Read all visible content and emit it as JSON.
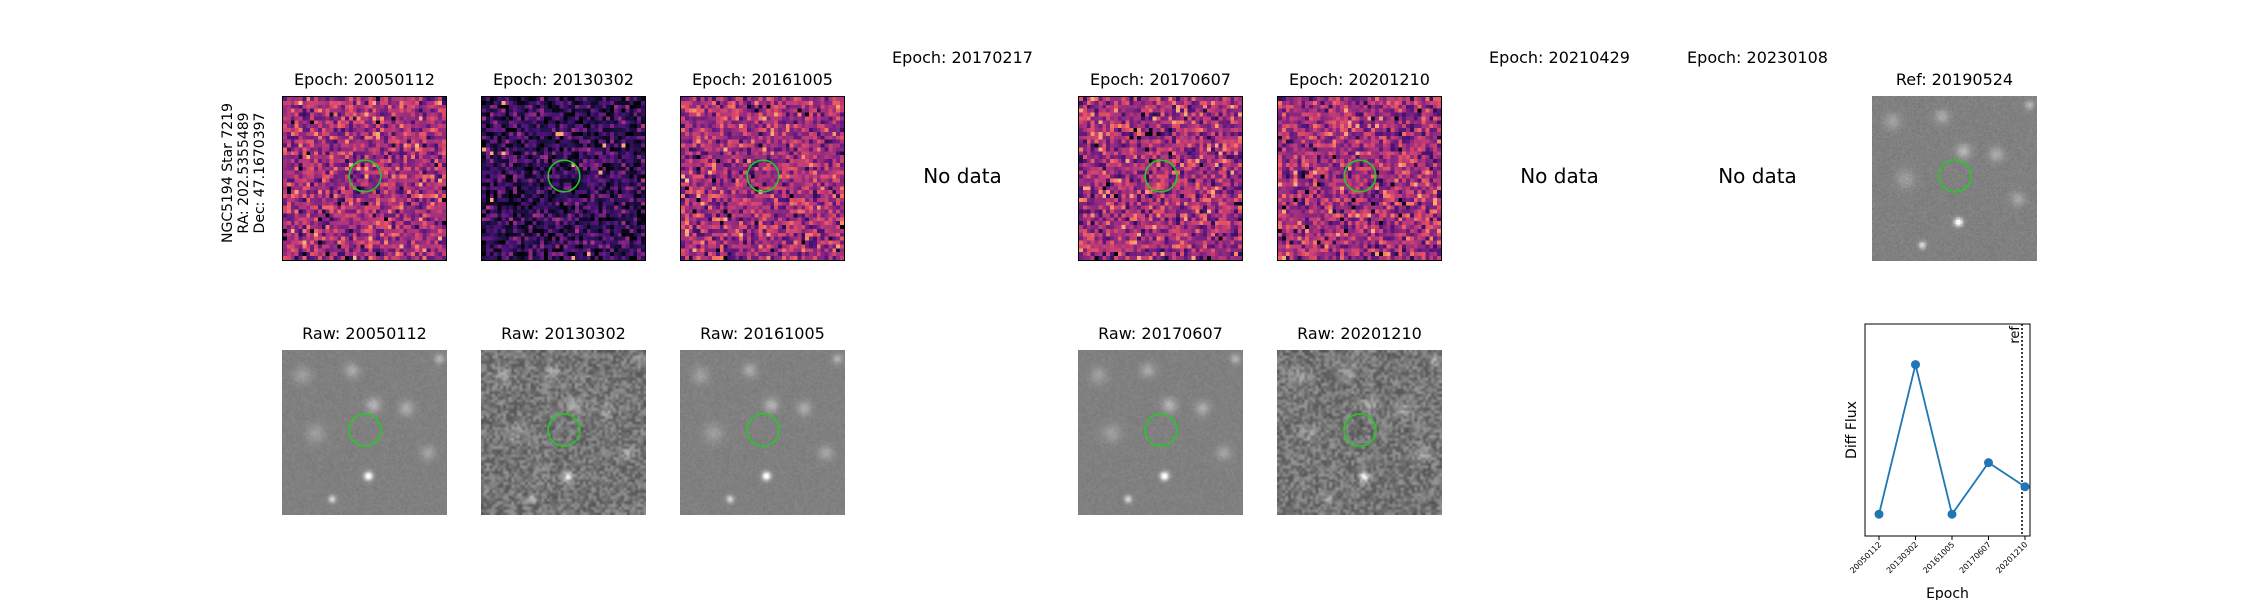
{
  "side_label": [
    "NGC5194 Star 7219",
    "RA: 202.5355489",
    "Dec: 47.1670397"
  ],
  "diff_row": [
    {
      "title": "Epoch: 20050112",
      "has_data": true,
      "seed": 11,
      "cmap": "magma"
    },
    {
      "title": "Epoch: 20130302",
      "has_data": true,
      "seed": 23,
      "cmap": "magma-dark"
    },
    {
      "title": "Epoch: 20161005",
      "has_data": true,
      "seed": 37,
      "cmap": "magma"
    },
    {
      "title": "Epoch: 20170217",
      "has_data": false,
      "nodata_text": "No data"
    },
    {
      "title": "Epoch: 20170607",
      "has_data": true,
      "seed": 41,
      "cmap": "magma"
    },
    {
      "title": "Epoch: 20201210",
      "has_data": true,
      "seed": 53,
      "cmap": "magma"
    },
    {
      "title": "Epoch: 20210429",
      "has_data": false,
      "nodata_text": "No data"
    },
    {
      "title": "Epoch: 20230108",
      "has_data": false,
      "nodata_text": "No data"
    },
    {
      "title": "Ref: 20190524",
      "has_data": true,
      "seed": 67,
      "cmap": "gray"
    }
  ],
  "raw_row": [
    {
      "title": "Raw: 20050112",
      "seed": 71,
      "noise": "smooth"
    },
    {
      "title": "Raw: 20130302",
      "seed": 83,
      "noise": "grainy"
    },
    {
      "title": "Raw: 20161005",
      "seed": 97,
      "noise": "smooth"
    },
    {
      "title": "",
      "empty": true
    },
    {
      "title": "Raw: 20170607",
      "seed": 101,
      "noise": "smooth"
    },
    {
      "title": "Raw: 20201210",
      "seed": 113,
      "noise": "grainy"
    }
  ],
  "aperture_color": "#22cc22",
  "chart_data": {
    "type": "line",
    "xlabel": "Epoch",
    "ylabel": "Diff Flux",
    "x": [
      "20050112",
      "20130302",
      "20161005",
      "20170607",
      "20201210"
    ],
    "values": [
      0.08,
      0.95,
      0.08,
      0.38,
      0.24
    ],
    "ref_label": "ref",
    "line_color": "#1f77b4"
  }
}
